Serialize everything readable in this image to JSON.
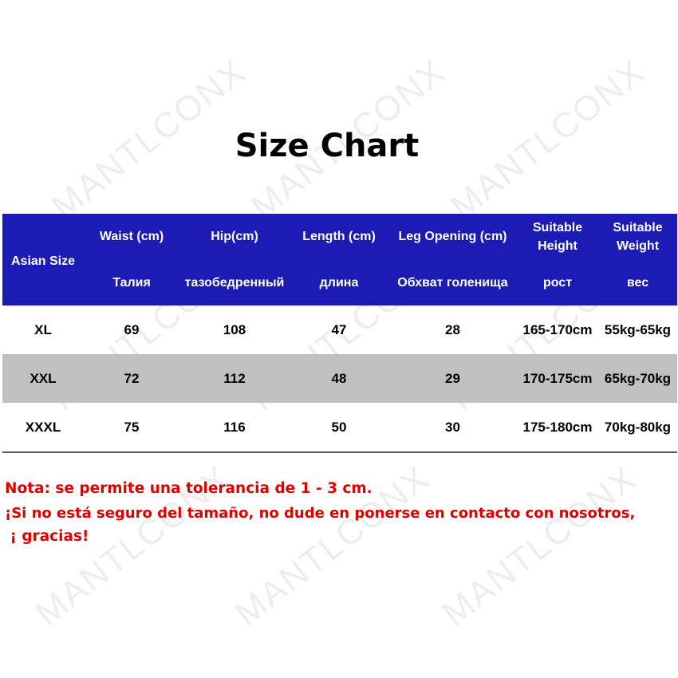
{
  "title": "Size Chart",
  "watermark": "MANTLCONX",
  "table": {
    "headers_en": [
      "Asian Size",
      "Waist (cm)",
      "Hip(cm)",
      "Length (cm)",
      "Leg Opening (cm)",
      "Suitable Height",
      "Suitable Weight"
    ],
    "headers_ru": [
      "",
      "Талия",
      "тазобедренный",
      "длина",
      "Обхват голенища",
      "рост",
      "вес"
    ],
    "rows": [
      [
        "XL",
        "69",
        "108",
        "47",
        "28",
        "165-170cm",
        "55kg-65kg"
      ],
      [
        "XXL",
        "72",
        "112",
        "48",
        "29",
        "170-175cm",
        "65kg-70kg"
      ],
      [
        "XXXL",
        "75",
        "116",
        "50",
        "30",
        "175-180cm",
        "70kg-80kg"
      ]
    ]
  },
  "notes": [
    "Nota: se permite una tolerancia de 1 - 3 cm.",
    "¡Si no está seguro del tamaño, no dude en ponerse en contacto con nosotros,",
    " ¡ gracias!"
  ],
  "colors": {
    "header_bg": "#1c1cb4",
    "alt_row": "#c0c0c0",
    "note": "#e00000"
  }
}
